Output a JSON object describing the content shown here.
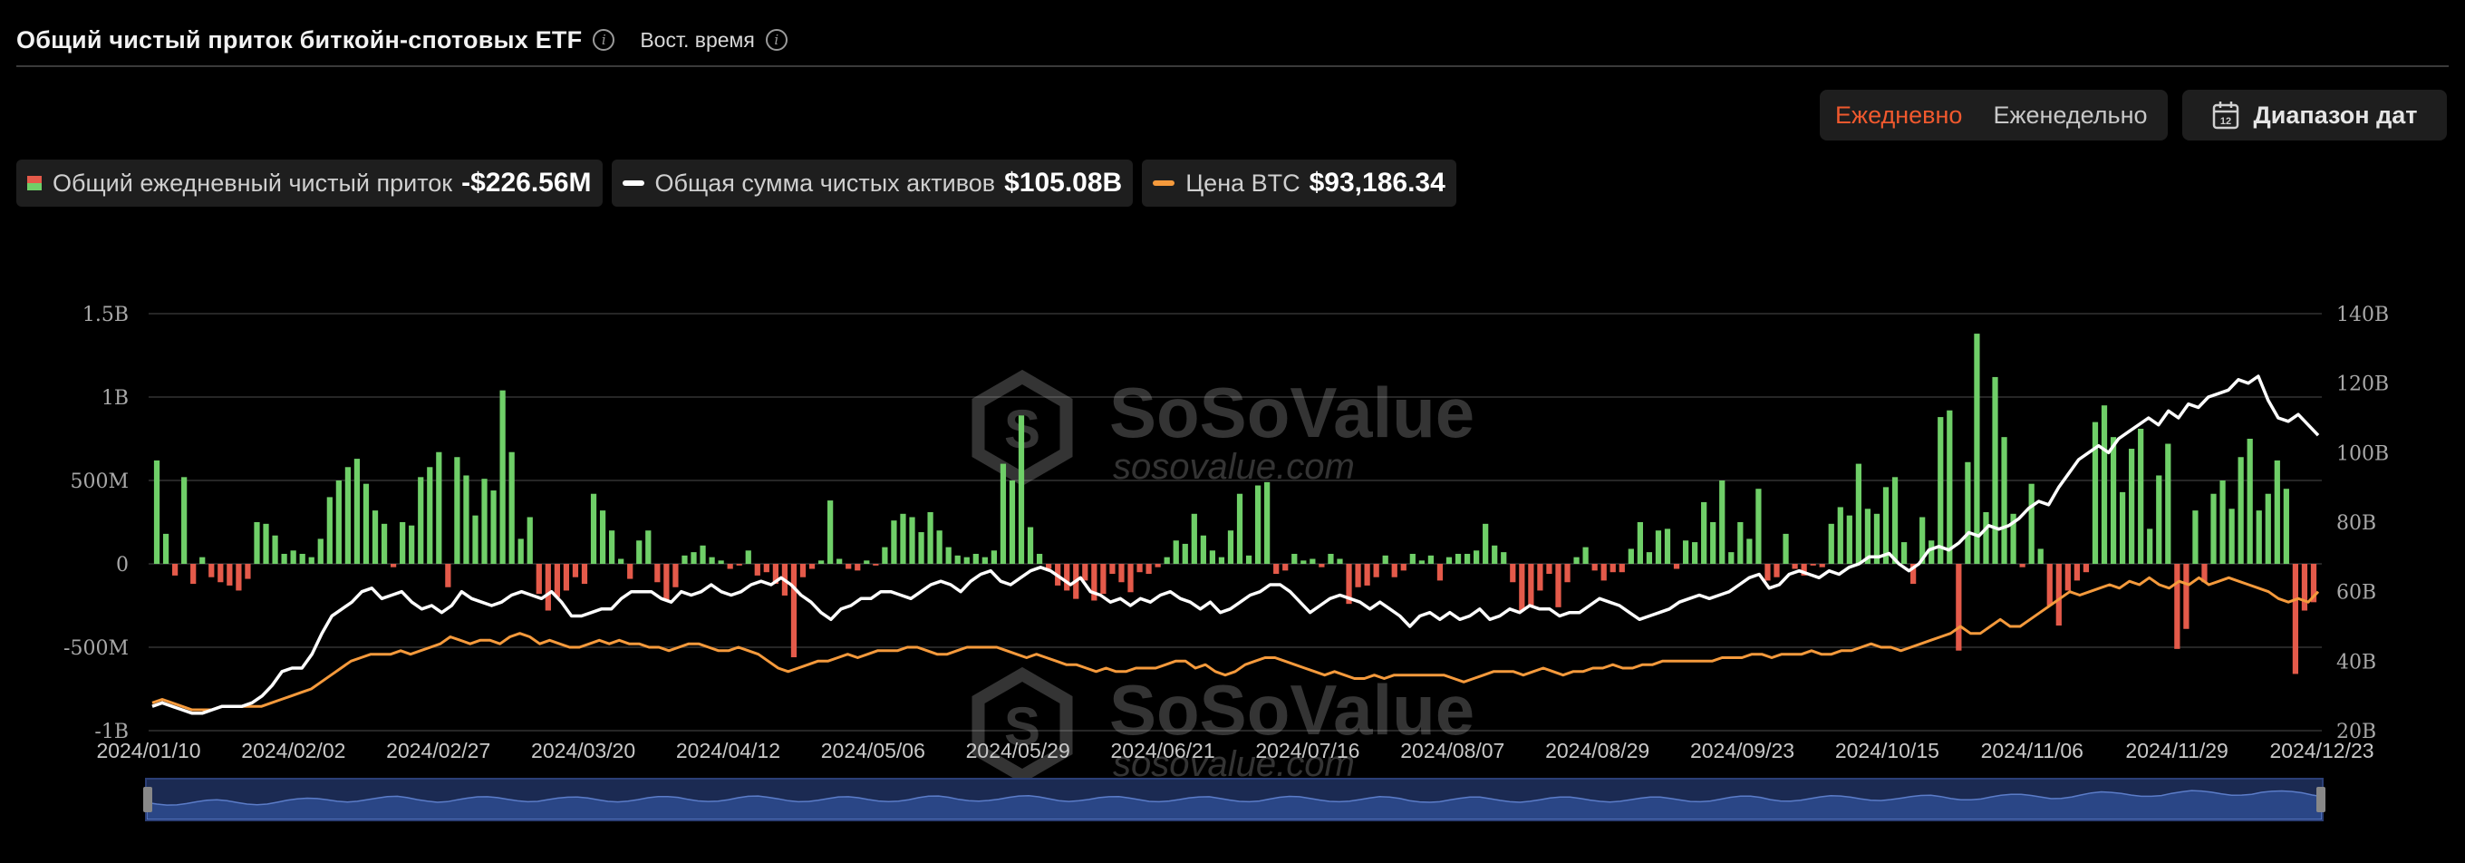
{
  "header": {
    "title": "Общий чистый приток биткойн-спотовых ETF",
    "time_label": "Вост. время"
  },
  "controls": {
    "daily_label": "Ежедневно",
    "weekly_label": "Еженедельно",
    "date_range_label": "Диапазон дат"
  },
  "legend": [
    {
      "label": "Общий ежедневный чистый приток",
      "value": "-$226.56M"
    },
    {
      "label": "Общая сумма чистых активов",
      "value": "$105.08B"
    },
    {
      "label": "Цена BTC",
      "value": "$93,186.34"
    }
  ],
  "watermark": {
    "brand": "SoSoValue",
    "site": "sosovalue.com"
  },
  "colors": {
    "inflow": "#6fcf68",
    "outflow": "#e45a4a",
    "assets_line": "#ffffff",
    "price_line": "#f59a3c",
    "active_tab": "#f0592e",
    "grid": "#333333"
  },
  "chart_data": {
    "type": "bar",
    "x_ticks": [
      "2024/01/10",
      "2024/02/02",
      "2024/02/27",
      "2024/03/20",
      "2024/04/12",
      "2024/05/06",
      "2024/05/29",
      "2024/06/21",
      "2024/07/16",
      "2024/08/07",
      "2024/08/29",
      "2024/09/23",
      "2024/10/15",
      "2024/11/06",
      "2024/11/29",
      "2024/12/23"
    ],
    "y_left": {
      "ticks": [
        "1.5B",
        "1B",
        "500M",
        "0",
        "-500M",
        "-1B"
      ],
      "tick_values": [
        1500,
        1000,
        500,
        0,
        -500,
        -1000
      ],
      "range": [
        -1000,
        1500
      ],
      "unit": "M USD"
    },
    "y_right": {
      "ticks": [
        "140B",
        "120B",
        "100B",
        "80B",
        "60B",
        "40B",
        "20B"
      ],
      "tick_values": [
        140,
        120,
        100,
        80,
        60,
        40,
        20
      ],
      "range": [
        20,
        140
      ],
      "unit": "B USD"
    },
    "grid": true,
    "series": [
      {
        "name": "Общий ежедневный чистый приток",
        "type": "bar",
        "axis": "left",
        "unit": "M USD",
        "values": [
          620,
          180,
          -70,
          520,
          -120,
          40,
          -80,
          -110,
          -130,
          -160,
          -90,
          250,
          240,
          170,
          60,
          80,
          60,
          40,
          150,
          400,
          500,
          580,
          630,
          480,
          320,
          240,
          -20,
          250,
          230,
          520,
          580,
          670,
          -140,
          640,
          530,
          290,
          510,
          440,
          1040,
          670,
          150,
          280,
          -180,
          -280,
          -200,
          -160,
          -80,
          -120,
          420,
          320,
          200,
          30,
          -90,
          140,
          200,
          -110,
          -220,
          -140,
          50,
          70,
          110,
          40,
          20,
          -30,
          -10,
          80,
          -70,
          -50,
          -120,
          -190,
          -560,
          -80,
          -30,
          20,
          380,
          30,
          -30,
          -40,
          20,
          -10,
          100,
          260,
          300,
          280,
          190,
          310,
          200,
          100,
          50,
          40,
          60,
          40,
          80,
          600,
          500,
          890,
          220,
          60,
          -30,
          -130,
          -160,
          -210,
          -100,
          -220,
          -180,
          -60,
          -110,
          -170,
          -50,
          -60,
          -20,
          40,
          140,
          120,
          300,
          170,
          80,
          40,
          200,
          420,
          50,
          470,
          490,
          -60,
          -40,
          60,
          20,
          30,
          -20,
          60,
          30,
          -240,
          -140,
          -130,
          -80,
          50,
          -80,
          -40,
          60,
          20,
          50,
          -100,
          40,
          60,
          60,
          80,
          240,
          110,
          70,
          -110,
          -280,
          -250,
          -160,
          -60,
          -260,
          -110,
          40,
          100,
          -40,
          -100,
          -50,
          -50,
          90,
          250,
          70,
          200,
          210,
          -30,
          140,
          130,
          370,
          250,
          500,
          70,
          250,
          150,
          450,
          -100,
          -80,
          180,
          -30,
          -70,
          -10,
          -20,
          240,
          340,
          290,
          600,
          330,
          300,
          460,
          520,
          130,
          -120,
          280,
          140,
          880,
          920,
          -520,
          610,
          1380,
          310,
          1120,
          760,
          300,
          -20,
          480,
          90,
          -250,
          -370,
          -160,
          -100,
          -50,
          850,
          950,
          760,
          430,
          690,
          810,
          210,
          530,
          720,
          -510,
          -390,
          320,
          -110,
          420,
          500,
          330,
          640,
          750,
          320,
          420,
          620,
          450,
          -660,
          -280,
          -230
        ],
        "color": "#6fcf68"
      },
      {
        "name": "Общая сумма чистых активов",
        "type": "line",
        "axis": "right",
        "unit": "B USD",
        "values": [
          27,
          28,
          27,
          26,
          25,
          25,
          26,
          27,
          27,
          27,
          28,
          30,
          33,
          37,
          38,
          38,
          42,
          48,
          53,
          55,
          57,
          60,
          61,
          58,
          59,
          60,
          57,
          55,
          56,
          54,
          56,
          60,
          58,
          57,
          56,
          57,
          59,
          60,
          59,
          58,
          60,
          57,
          53,
          53,
          54,
          55,
          55,
          58,
          60,
          60,
          60,
          58,
          57,
          60,
          59,
          60,
          62,
          60,
          59,
          60,
          62,
          63,
          62,
          64,
          62,
          59,
          57,
          54,
          52,
          55,
          56,
          58,
          58,
          60,
          60,
          59,
          58,
          60,
          62,
          63,
          62,
          60,
          63,
          65,
          66,
          63,
          62,
          64,
          66,
          67,
          66,
          64,
          62,
          64,
          60,
          59,
          57,
          58,
          56,
          58,
          57,
          59,
          60,
          58,
          57,
          55,
          57,
          54,
          55,
          57,
          59,
          60,
          62,
          62,
          60,
          57,
          54,
          56,
          58,
          59,
          58,
          57,
          55,
          57,
          55,
          53,
          50,
          53,
          54,
          52,
          54,
          52,
          53,
          55,
          52,
          53,
          55,
          54,
          56,
          55,
          55,
          53,
          54,
          54,
          56,
          58,
          57,
          56,
          54,
          52,
          53,
          54,
          55,
          57,
          58,
          59,
          58,
          59,
          60,
          62,
          64,
          65,
          61,
          62,
          65,
          66,
          65,
          64,
          66,
          65,
          67,
          68,
          70,
          70,
          71,
          68,
          66,
          68,
          72,
          73,
          72,
          74,
          77,
          76,
          79,
          78,
          79,
          81,
          84,
          86,
          85,
          90,
          94,
          98,
          100,
          102,
          100,
          104,
          106,
          108,
          110,
          108,
          112,
          110,
          114,
          113,
          116,
          117,
          118,
          121,
          120,
          122,
          115,
          110,
          109,
          111,
          108,
          105
        ],
        "color": "#ffffff"
      },
      {
        "name": "Цена BTC",
        "type": "line",
        "axis": "right",
        "unit": "B USD (plotted)",
        "values": [
          28,
          29,
          28,
          27,
          26,
          26,
          26,
          27,
          27,
          27,
          27,
          27,
          28,
          29,
          30,
          31,
          32,
          34,
          36,
          38,
          40,
          41,
          42,
          42,
          42,
          43,
          42,
          43,
          44,
          45,
          47,
          46,
          45,
          46,
          46,
          45,
          47,
          48,
          47,
          45,
          46,
          45,
          44,
          44,
          45,
          46,
          45,
          46,
          45,
          45,
          44,
          44,
          43,
          44,
          45,
          45,
          44,
          43,
          43,
          44,
          43,
          42,
          40,
          38,
          37,
          38,
          39,
          40,
          40,
          41,
          42,
          41,
          42,
          43,
          43,
          43,
          44,
          44,
          43,
          42,
          42,
          43,
          44,
          44,
          44,
          44,
          43,
          42,
          41,
          42,
          41,
          40,
          39,
          39,
          38,
          37,
          38,
          37,
          37,
          38,
          38,
          38,
          39,
          40,
          40,
          38,
          39,
          37,
          36,
          37,
          39,
          40,
          41,
          41,
          40,
          39,
          38,
          37,
          36,
          37,
          36,
          35,
          35,
          36,
          35,
          36,
          36,
          36,
          36,
          36,
          36,
          35,
          34,
          35,
          36,
          37,
          37,
          37,
          36,
          37,
          38,
          37,
          36,
          37,
          37,
          38,
          38,
          39,
          38,
          38,
          39,
          39,
          40,
          40,
          40,
          40,
          40,
          40,
          41,
          41,
          41,
          42,
          42,
          41,
          42,
          42,
          42,
          43,
          42,
          42,
          43,
          43,
          44,
          45,
          44,
          44,
          43,
          44,
          45,
          46,
          47,
          48,
          50,
          48,
          48,
          50,
          52,
          50,
          50,
          52,
          54,
          56,
          58,
          60,
          59,
          60,
          61,
          62,
          61,
          63,
          62,
          64,
          62,
          61,
          63,
          62,
          64,
          62,
          63,
          64,
          63,
          62,
          61,
          60,
          58,
          57,
          58,
          57,
          60
        ],
        "color": "#f59a3c"
      }
    ]
  }
}
